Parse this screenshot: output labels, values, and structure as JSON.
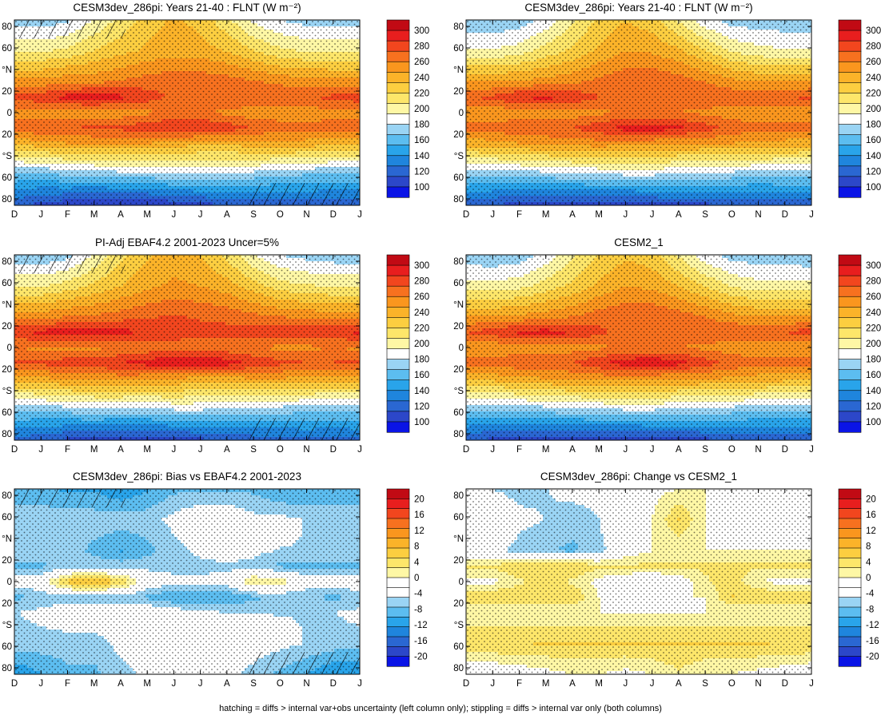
{
  "footer": "hatching = diffs > internal var+obs uncertainty (left column only); stippling = diffs > internal var only (both columns)",
  "months": [
    "D",
    "J",
    "F",
    "M",
    "A",
    "M",
    "J",
    "J",
    "A",
    "S",
    "O",
    "N",
    "D",
    "J"
  ],
  "lat_labels": [
    "80",
    "60",
    "°N",
    "20",
    "0",
    "20",
    "°S",
    "60",
    "80"
  ],
  "abs_colorbar": {
    "labels": [
      "300",
      "280",
      "260",
      "240",
      "220",
      "200",
      "180",
      "160",
      "140",
      "120",
      "100"
    ],
    "colors": [
      "#c10a14",
      "#e81e1e",
      "#f2461e",
      "#f7711f",
      "#fa961e",
      "#fbb329",
      "#fcce40",
      "#fde66a",
      "#fef7a5",
      "#ffffff",
      "#9ad4f4",
      "#5cbdf0",
      "#29a4ea",
      "#1f85dd",
      "#2a67d2",
      "#2c47c9",
      "#0a14e6"
    ]
  },
  "diff_colorbar": {
    "labels": [
      "20",
      "16",
      "12",
      "8",
      "4",
      "0",
      "-4",
      "-8",
      "-12",
      "-16",
      "-20"
    ],
    "colors": [
      "#c10a14",
      "#e81e1e",
      "#f2461e",
      "#f7711f",
      "#fa961e",
      "#fbb329",
      "#fcce40",
      "#fde66a",
      "#fef7a5",
      "#ffffff",
      "#ffffff",
      "#9ad4f4",
      "#5cbdf0",
      "#29a4ea",
      "#1f85dd",
      "#2a67d2",
      "#2c47c9",
      "#0a14e6"
    ]
  },
  "chart_data": [
    {
      "type": "heatmap",
      "title": "CESM3dev_286pi: Years 21-40 : FLNT (W m⁻²)",
      "kind": "abs",
      "x": [
        "D",
        "J",
        "F",
        "M",
        "A",
        "M",
        "J",
        "J",
        "A",
        "S",
        "O",
        "N",
        "D",
        "J"
      ],
      "y_lat": [
        -90,
        -60,
        -30,
        -15,
        0,
        15,
        30,
        60,
        90
      ],
      "values": [
        [
          120,
          110,
          105,
          100,
          100,
          102,
          105,
          110,
          115,
          115,
          118,
          120,
          120,
          120
        ],
        [
          165,
          165,
          170,
          172,
          175,
          175,
          180,
          180,
          178,
          175,
          172,
          168,
          165,
          165
        ],
        [
          235,
          240,
          245,
          245,
          245,
          245,
          240,
          235,
          235,
          240,
          240,
          240,
          235,
          235
        ],
        [
          265,
          270,
          270,
          275,
          275,
          280,
          285,
          285,
          280,
          270,
          265,
          262,
          265,
          270
        ],
        [
          255,
          250,
          250,
          250,
          250,
          255,
          262,
          260,
          255,
          250,
          250,
          250,
          255,
          250
        ],
        [
          275,
          280,
          290,
          292,
          288,
          278,
          268,
          268,
          270,
          272,
          270,
          270,
          275,
          280
        ],
        [
          250,
          250,
          255,
          255,
          260,
          265,
          268,
          268,
          265,
          260,
          255,
          252,
          250,
          250
        ],
        [
          205,
          205,
          210,
          220,
          228,
          235,
          240,
          238,
          232,
          220,
          210,
          205,
          205,
          205
        ],
        [
          175,
          172,
          178,
          195,
          210,
          225,
          235,
          228,
          210,
          190,
          180,
          175,
          175,
          172
        ]
      ],
      "clim": [
        90,
        310
      ],
      "hatching": "present in polar regions",
      "stippling": "widespread"
    },
    {
      "type": "heatmap",
      "title": "CESM3dev_286pi: Years 21-40 : FLNT (W m⁻²)",
      "kind": "abs",
      "x": [
        "D",
        "J",
        "F",
        "M",
        "A",
        "M",
        "J",
        "J",
        "A",
        "S",
        "O",
        "N",
        "D",
        "J"
      ],
      "y_lat": [
        -90,
        -60,
        -30,
        -15,
        0,
        15,
        30,
        60,
        90
      ],
      "values": [
        [
          120,
          115,
          110,
          105,
          105,
          105,
          105,
          110,
          112,
          112,
          115,
          118,
          120,
          120
        ],
        [
          172,
          172,
          172,
          175,
          178,
          180,
          182,
          182,
          180,
          178,
          175,
          172,
          172,
          172
        ],
        [
          238,
          240,
          245,
          248,
          250,
          252,
          250,
          248,
          245,
          245,
          245,
          242,
          240,
          238
        ],
        [
          262,
          265,
          268,
          270,
          272,
          280,
          290,
          292,
          288,
          278,
          268,
          262,
          262,
          265
        ],
        [
          250,
          248,
          250,
          250,
          250,
          255,
          260,
          260,
          258,
          255,
          250,
          250,
          250,
          248
        ],
        [
          270,
          275,
          285,
          288,
          282,
          272,
          262,
          262,
          265,
          268,
          268,
          268,
          270,
          275
        ],
        [
          245,
          245,
          248,
          250,
          255,
          262,
          268,
          270,
          265,
          258,
          250,
          245,
          245,
          245
        ],
        [
          195,
          195,
          200,
          212,
          222,
          235,
          245,
          243,
          235,
          220,
          205,
          198,
          195,
          195
        ],
        [
          172,
          170,
          172,
          185,
          205,
          222,
          232,
          225,
          205,
          185,
          175,
          172,
          172,
          170
        ]
      ],
      "clim": [
        90,
        310
      ],
      "stippling": "widespread"
    },
    {
      "type": "heatmap",
      "title": "PI-Adj EBAF4.2 2001-2023 Uncer=5%",
      "kind": "abs",
      "x": [
        "D",
        "J",
        "F",
        "M",
        "A",
        "M",
        "J",
        "J",
        "A",
        "S",
        "O",
        "N",
        "D",
        "J"
      ],
      "y_lat": [
        -90,
        -60,
        -30,
        -15,
        0,
        15,
        30,
        60,
        90
      ],
      "values": [
        [
          125,
          118,
          112,
          108,
          105,
          105,
          108,
          112,
          118,
          120,
          122,
          125,
          125,
          125
        ],
        [
          170,
          172,
          175,
          178,
          178,
          178,
          182,
          182,
          180,
          178,
          175,
          172,
          170,
          172
        ],
        [
          240,
          242,
          248,
          250,
          250,
          248,
          245,
          242,
          242,
          245,
          245,
          242,
          240,
          240
        ],
        [
          272,
          275,
          278,
          280,
          285,
          290,
          295,
          295,
          292,
          282,
          275,
          272,
          272,
          275
        ],
        [
          258,
          255,
          255,
          255,
          258,
          262,
          268,
          265,
          262,
          258,
          255,
          255,
          258,
          255
        ],
        [
          282,
          288,
          292,
          295,
          290,
          282,
          275,
          275,
          275,
          278,
          280,
          280,
          282,
          288
        ],
        [
          252,
          252,
          258,
          260,
          265,
          270,
          272,
          270,
          268,
          262,
          258,
          255,
          252,
          252
        ],
        [
          205,
          205,
          212,
          222,
          232,
          242,
          248,
          245,
          238,
          225,
          212,
          208,
          205,
          205
        ],
        [
          172,
          170,
          175,
          195,
          215,
          230,
          238,
          232,
          215,
          195,
          180,
          175,
          172,
          170
        ]
      ],
      "clim": [
        90,
        310
      ],
      "hatching": "present in polar regions",
      "stippling": "widespread"
    },
    {
      "type": "heatmap",
      "title": "CESM2_1",
      "kind": "abs",
      "x": [
        "D",
        "J",
        "F",
        "M",
        "A",
        "M",
        "J",
        "J",
        "A",
        "S",
        "O",
        "N",
        "D",
        "J"
      ],
      "y_lat": [
        -90,
        -60,
        -30,
        -15,
        0,
        15,
        30,
        60,
        90
      ],
      "values": [
        [
          118,
          112,
          108,
          105,
          105,
          105,
          105,
          108,
          110,
          112,
          115,
          118,
          118,
          118
        ],
        [
          170,
          170,
          172,
          175,
          178,
          180,
          182,
          182,
          180,
          178,
          175,
          172,
          170,
          170
        ],
        [
          236,
          238,
          242,
          245,
          248,
          250,
          250,
          248,
          245,
          245,
          244,
          240,
          238,
          236
        ],
        [
          262,
          265,
          268,
          270,
          272,
          282,
          292,
          295,
          290,
          278,
          268,
          262,
          262,
          265
        ],
        [
          250,
          248,
          250,
          250,
          252,
          255,
          260,
          260,
          258,
          255,
          250,
          250,
          250,
          248
        ],
        [
          272,
          278,
          288,
          290,
          285,
          275,
          265,
          265,
          268,
          270,
          270,
          270,
          272,
          278
        ],
        [
          245,
          245,
          248,
          252,
          258,
          265,
          270,
          270,
          265,
          258,
          250,
          245,
          245,
          245
        ],
        [
          198,
          198,
          202,
          212,
          222,
          235,
          245,
          242,
          232,
          218,
          205,
          198,
          198,
          198
        ],
        [
          172,
          170,
          172,
          185,
          205,
          220,
          230,
          225,
          205,
          185,
          175,
          172,
          172,
          170
        ]
      ],
      "clim": [
        90,
        310
      ],
      "stippling": "widespread"
    },
    {
      "type": "heatmap",
      "title": "CESM3dev_286pi: Bias vs EBAF4.2 2001-2023",
      "kind": "diff",
      "x": [
        "D",
        "J",
        "F",
        "M",
        "A",
        "M",
        "J",
        "J",
        "A",
        "S",
        "O",
        "N",
        "D",
        "J"
      ],
      "y_lat": [
        -90,
        -60,
        -30,
        -15,
        0,
        15,
        30,
        60,
        90
      ],
      "values": [
        [
          -12,
          -10,
          -8,
          -8,
          -6,
          -4,
          -4,
          -4,
          -4,
          -6,
          -8,
          -10,
          -12,
          -12
        ],
        [
          -6,
          -6,
          -6,
          -6,
          -4,
          -3,
          -3,
          -3,
          -3,
          -3,
          -4,
          -5,
          -6,
          -6
        ],
        [
          -5,
          -4,
          -3,
          -3,
          -3,
          -2,
          -3,
          -4,
          -5,
          -5,
          -5,
          -5,
          -5,
          -4
        ],
        [
          -8,
          -7,
          -6,
          -6,
          -6,
          -8,
          -10,
          -10,
          -10,
          -8,
          -7,
          -7,
          -8,
          -7
        ],
        [
          -3,
          -2,
          6,
          8,
          5,
          -2,
          -4,
          -4,
          -3,
          3,
          2,
          -3,
          -3,
          -2
        ],
        [
          -8,
          -8,
          -6,
          -6,
          -6,
          -6,
          -6,
          -6,
          -6,
          -6,
          -8,
          -8,
          -8,
          -8
        ],
        [
          -5,
          -5,
          -6,
          -8,
          -10,
          -8,
          -6,
          -4,
          -2,
          -4,
          -5,
          -5,
          -5,
          -5
        ],
        [
          -5,
          -5,
          -6,
          -6,
          -6,
          -6,
          -4,
          -2,
          -2,
          -4,
          -4,
          -5,
          -5,
          -5
        ],
        [
          -10,
          -10,
          -10,
          -10,
          -12,
          -10,
          -8,
          -8,
          -8,
          -8,
          -10,
          -10,
          -10,
          -10
        ]
      ],
      "clim": [
        -22,
        22
      ],
      "hatching": "present",
      "stippling": "widespread"
    },
    {
      "type": "heatmap",
      "title": "CESM3dev_286pi: Change vs CESM2_1",
      "kind": "diff",
      "x": [
        "D",
        "J",
        "F",
        "M",
        "A",
        "M",
        "J",
        "J",
        "A",
        "S",
        "O",
        "N",
        "D",
        "J"
      ],
      "y_lat": [
        -90,
        -60,
        -30,
        -15,
        0,
        15,
        30,
        60,
        90
      ],
      "values": [
        [
          -3,
          -3,
          -2,
          -1,
          0,
          0,
          -1,
          0,
          2,
          0,
          0,
          -1,
          -2,
          -3
        ],
        [
          5,
          5,
          5,
          5,
          5,
          5,
          5,
          5,
          5,
          5,
          5,
          5,
          5,
          5
        ],
        [
          0,
          0,
          0,
          0,
          0,
          0,
          0,
          0,
          0,
          0,
          0,
          0,
          0,
          0
        ],
        [
          5,
          5,
          5,
          5,
          5,
          0,
          0,
          0,
          0,
          0,
          5,
          5,
          5,
          5
        ],
        [
          -1,
          -1,
          2,
          3,
          2,
          -1,
          -3,
          -4,
          -2,
          2,
          4,
          0,
          -1,
          -1
        ],
        [
          3,
          3,
          5,
          5,
          5,
          3,
          3,
          3,
          3,
          3,
          3,
          3,
          3,
          3
        ],
        [
          -4,
          -4,
          -6,
          -7,
          -8,
          -6,
          -2,
          0,
          0,
          0,
          0,
          0,
          0,
          0
        ],
        [
          0,
          -1,
          -4,
          -5,
          -6,
          -5,
          0,
          0,
          5,
          0,
          0,
          0,
          0,
          0
        ],
        [
          -4,
          -5,
          -6,
          -5,
          -4,
          -4,
          -2,
          -1,
          0,
          0,
          0,
          0,
          -2,
          -4
        ]
      ],
      "clim": [
        -22,
        22
      ],
      "stippling": "widespread"
    }
  ]
}
